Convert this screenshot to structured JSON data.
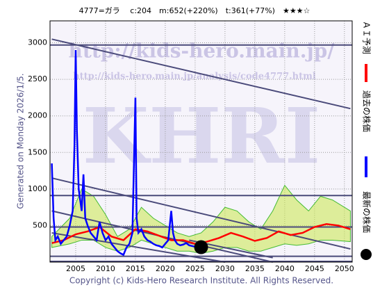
{
  "chart_data": {
    "type": "line",
    "title": "4777=ガラ　 c:204　m:652(+220%)　t:361(+77%)　★★★☆",
    "y_label": "Generated on Monday 2026/1/5.",
    "footer": "Copyright (c) Kids-Hero Research Institute. All Rights Reserved.",
    "watermarks": [
      "http://kids-hero.main.jp/",
      "http://kids-hero.main.jp/analysis/code4777.html",
      "KHRI"
    ],
    "xlim": [
      2000.7,
      2051.3
    ],
    "ylim": [
      0,
      3300
    ],
    "xticks": [
      2005,
      2010,
      2015,
      2020,
      2025,
      2030,
      2035,
      2040,
      2045,
      2050
    ],
    "yticks": [
      500,
      1000,
      1500,
      2000,
      2500,
      3000
    ],
    "grid": true,
    "band": {
      "color": "#c8e84a",
      "x": [
        2001,
        2004,
        2006,
        2008,
        2010,
        2012,
        2014,
        2016,
        2018,
        2020,
        2022,
        2024,
        2026,
        2028,
        2030,
        2032,
        2034,
        2036,
        2038,
        2040,
        2042,
        2044,
        2046,
        2048,
        2051
      ],
      "upper": [
        350,
        600,
        1000,
        900,
        650,
        350,
        450,
        750,
        600,
        500,
        400,
        350,
        400,
        550,
        750,
        700,
        550,
        450,
        700,
        1050,
        850,
        700,
        900,
        850,
        700
      ],
      "lower": [
        200,
        250,
        300,
        300,
        200,
        150,
        200,
        300,
        250,
        200,
        150,
        150,
        120,
        150,
        200,
        200,
        150,
        150,
        200,
        250,
        230,
        250,
        300,
        300,
        280
      ]
    },
    "hlines": [
      2970,
      910,
      480,
      80,
      10
    ],
    "ref_lines": [
      {
        "x": [
          2001,
          2051
        ],
        "values": [
          3050,
          2100
        ]
      },
      {
        "x": [
          2001,
          2051
        ],
        "values": [
          1150,
          180
        ]
      },
      {
        "x": [
          2001,
          2038
        ],
        "values": [
          700,
          0
        ]
      },
      {
        "x": [
          2001,
          2030
        ],
        "values": [
          400,
          0
        ]
      },
      {
        "x": [
          2024,
          2038
        ],
        "values": [
          300,
          60
        ]
      }
    ],
    "ref_color": "#4a4a7a",
    "series": [
      {
        "name": "ＡＩ予測",
        "color": "#ff0000",
        "x": [
          2001,
          2003,
          2005,
          2007,
          2009,
          2011,
          2013,
          2015,
          2017,
          2019,
          2021,
          2023,
          2025,
          2027,
          2029,
          2031,
          2033,
          2035,
          2037,
          2039,
          2041,
          2043,
          2045,
          2047,
          2049,
          2051
        ],
        "values": [
          260,
          300,
          380,
          420,
          480,
          350,
          300,
          450,
          420,
          360,
          300,
          300,
          250,
          280,
          330,
          400,
          350,
          290,
          330,
          420,
          370,
          400,
          480,
          520,
          500,
          450
        ]
      },
      {
        "name": "過去の株価",
        "color": "#0000ff",
        "x": [
          2001,
          2001.3,
          2001.6,
          2002,
          2002.5,
          2003,
          2003.5,
          2004,
          2004.5,
          2004.8,
          2005,
          2005.2,
          2005.5,
          2006,
          2006.3,
          2006.6,
          2007,
          2007.5,
          2008,
          2008.5,
          2009,
          2009.5,
          2010,
          2010.5,
          2011,
          2011.5,
          2012,
          2012.5,
          2013,
          2013.5,
          2014,
          2014.5,
          2015,
          2015.2,
          2015.5,
          2016,
          2016.5,
          2017,
          2017.5,
          2018,
          2018.5,
          2019,
          2019.5,
          2020,
          2020.5,
          2021,
          2021.3,
          2021.6,
          2022,
          2022.5,
          2023,
          2023.5,
          2024,
          2025,
          2026
        ],
        "values": [
          1350,
          600,
          300,
          350,
          250,
          300,
          350,
          500,
          700,
          1600,
          2900,
          1800,
          1000,
          700,
          1200,
          600,
          500,
          400,
          350,
          300,
          550,
          400,
          300,
          350,
          250,
          200,
          150,
          120,
          100,
          200,
          250,
          400,
          2250,
          600,
          400,
          450,
          350,
          300,
          280,
          250,
          230,
          220,
          200,
          250,
          300,
          700,
          400,
          300,
          250,
          230,
          240,
          260,
          230,
          210,
          204
        ]
      }
    ],
    "latest": {
      "name": "最新の株価",
      "x": 2026,
      "value": 204,
      "color": "#000000"
    }
  }
}
